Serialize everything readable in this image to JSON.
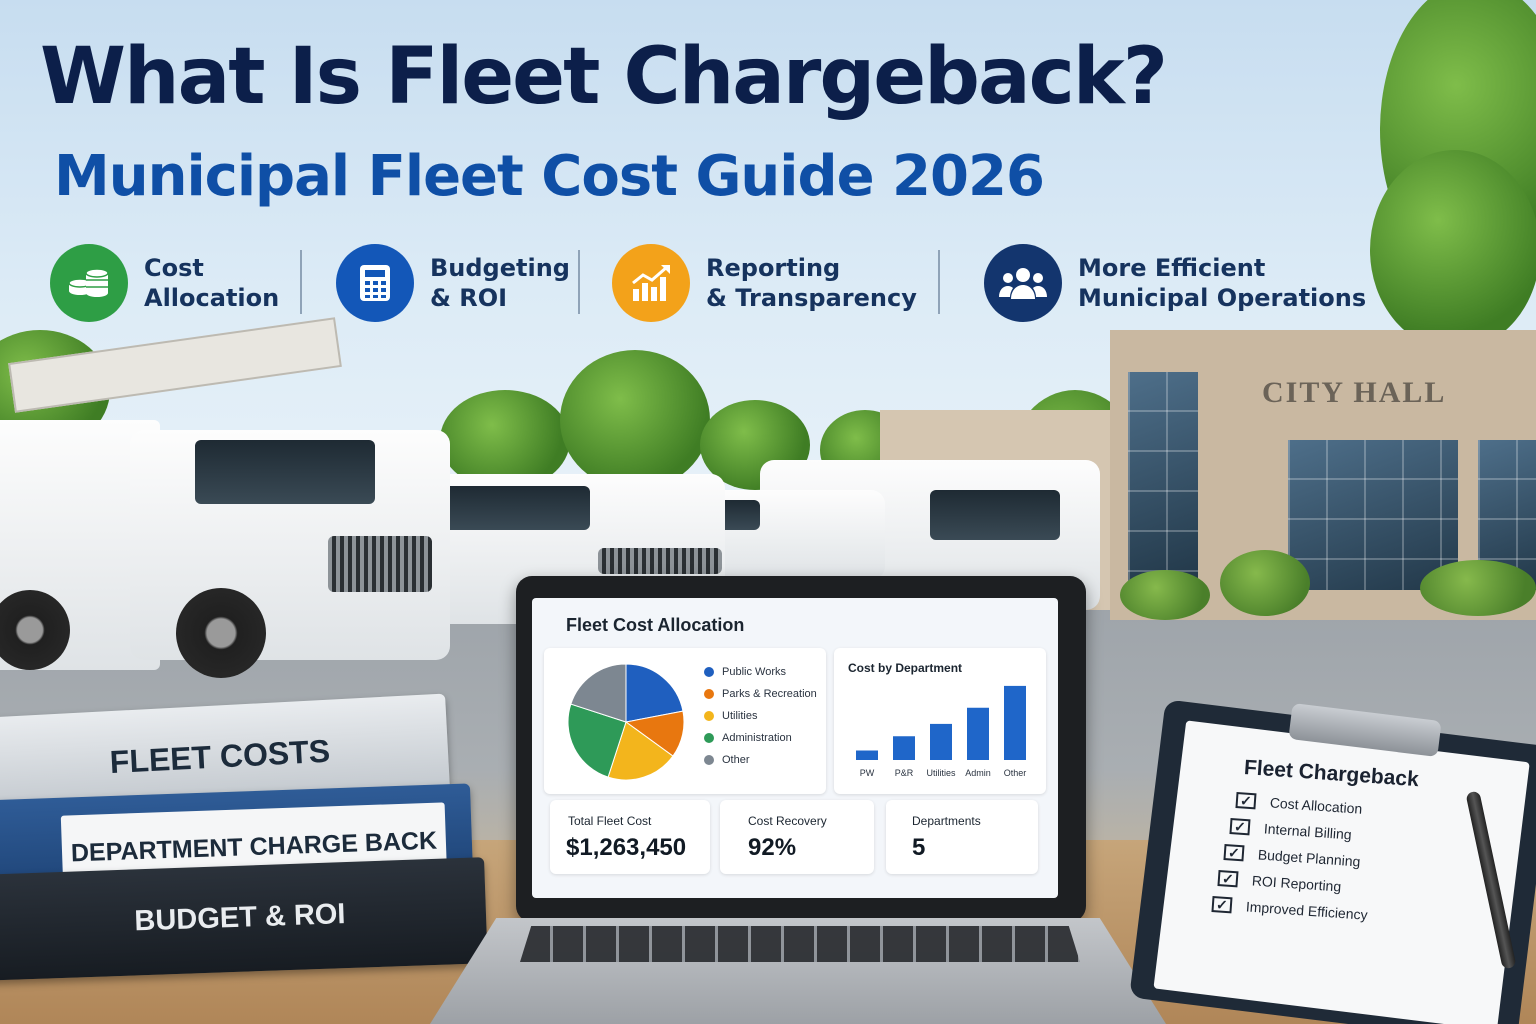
{
  "header": {
    "title": "What Is Fleet Chargeback?",
    "subtitle": "Municipal Fleet Cost Guide 2026"
  },
  "features": [
    {
      "line1": "Cost",
      "line2": "Allocation",
      "icon": "coins-icon",
      "color": "#2e9e45"
    },
    {
      "line1": "Budgeting",
      "line2": "& ROI",
      "icon": "calculator-icon",
      "color": "#1357b8"
    },
    {
      "line1": "Reporting",
      "line2": "& Transparency",
      "icon": "growth-chart-icon",
      "color": "#f3a21a"
    },
    {
      "line1": "More Efficient",
      "line2": "Municipal Operations",
      "icon": "people-icon",
      "color": "#13356e"
    }
  ],
  "building": {
    "sign": "CITY HALL"
  },
  "binders": {
    "top": "FLEET COSTS",
    "middle": "DEPARTMENT CHARGE BACK",
    "bottom": "BUDGET & ROI"
  },
  "dashboard": {
    "title": "Fleet Cost Allocation",
    "bar_title": "Cost by Department",
    "kpis": [
      {
        "label": "Total Fleet Cost",
        "value": "$1,263,450"
      },
      {
        "label": "Cost Recovery",
        "value": "92%"
      },
      {
        "label": "Departments",
        "value": "5"
      }
    ]
  },
  "chart_data": [
    {
      "type": "pie",
      "categories": [
        "Public Works",
        "Parks & Recreation",
        "Utilities",
        "Administration",
        "Other"
      ],
      "values": [
        22,
        13,
        20,
        25,
        20
      ],
      "colors": [
        "#1f5fbf",
        "#e8770f",
        "#f3b51c",
        "#2e9a58",
        "#7d8791"
      ],
      "title": "",
      "legend": "right"
    },
    {
      "type": "bar",
      "title": "Cost by Department",
      "categories": [
        "PW",
        "P&R",
        "Utilities",
        "Admin",
        "Other"
      ],
      "values": [
        10,
        25,
        38,
        55,
        78
      ],
      "color": "#1f66c9",
      "xlabel": "",
      "ylabel": "",
      "grid": false
    }
  ],
  "clipboard": {
    "title": "Fleet Chargeback",
    "items": [
      "Cost Allocation",
      "Internal Billing",
      "Budget Planning",
      "ROI Reporting",
      "Improved Efficiency"
    ]
  }
}
